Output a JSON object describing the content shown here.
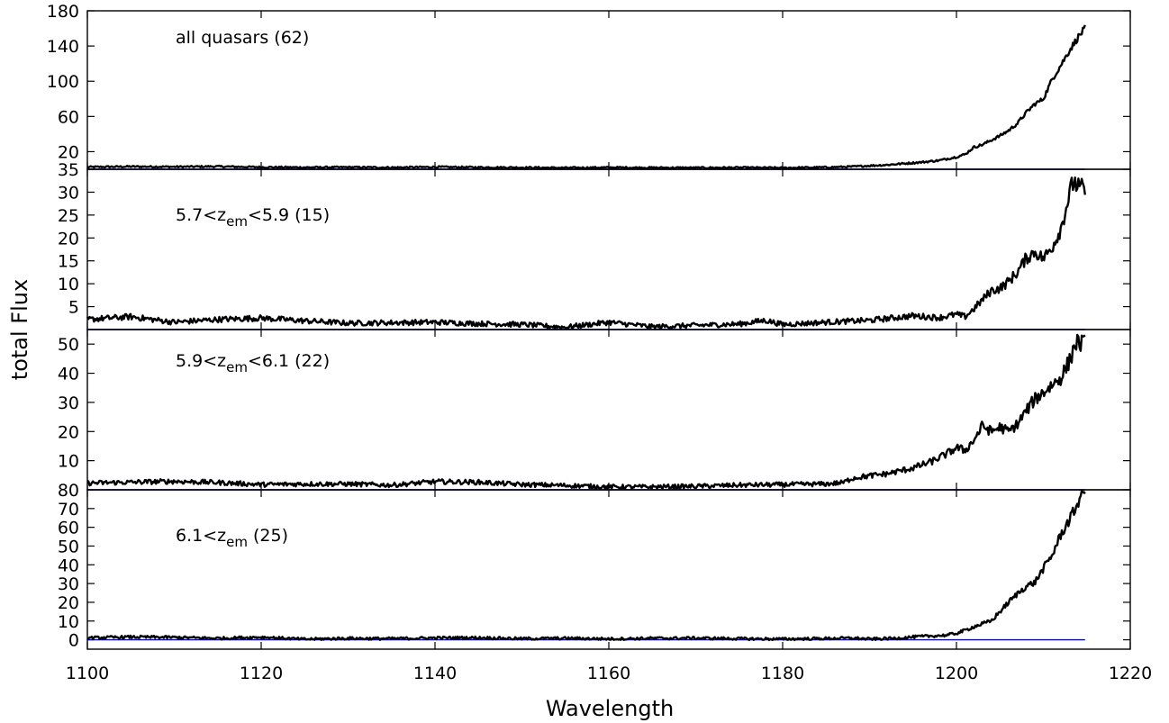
{
  "chart_data": {
    "type": "line",
    "xlabel": "Wavelength",
    "ylabel": "total Flux",
    "xlim": [
      1100,
      1220
    ],
    "x_ticks": [
      "1100",
      "1120",
      "1140",
      "1160",
      "1180",
      "1200",
      "1220"
    ],
    "colors": {
      "spectrum": "#000000",
      "baseline": "#0000ff",
      "frame": "#000000"
    },
    "panels": [
      {
        "label_parts": [
          {
            "text": "all quasars (62)",
            "sub": false
          }
        ],
        "ylim": [
          0,
          180
        ],
        "y_ticks": [
          20,
          60,
          100,
          140,
          180
        ],
        "baseline": 0,
        "noise": 0.9,
        "series": [
          {
            "values": [
              [
                1100,
                2.5
              ],
              [
                1105,
                3.1
              ],
              [
                1110,
                2.8
              ],
              [
                1115,
                3.2
              ],
              [
                1120,
                2.4
              ],
              [
                1125,
                2.1
              ],
              [
                1130,
                2.3
              ],
              [
                1135,
                2.0
              ],
              [
                1140,
                2.6
              ],
              [
                1145,
                2.2
              ],
              [
                1150,
                2.0
              ],
              [
                1155,
                1.6
              ],
              [
                1160,
                2.0
              ],
              [
                1165,
                1.8
              ],
              [
                1170,
                1.7
              ],
              [
                1175,
                1.9
              ],
              [
                1180,
                1.6
              ],
              [
                1185,
                2.2
              ],
              [
                1188,
                3.0
              ],
              [
                1190,
                4.0
              ],
              [
                1192,
                5.0
              ],
              [
                1194,
                6.5
              ],
              [
                1196,
                8.0
              ],
              [
                1198,
                10
              ],
              [
                1200,
                14
              ],
              [
                1201,
                17
              ],
              [
                1202,
                25
              ],
              [
                1203,
                28
              ],
              [
                1204,
                33
              ],
              [
                1205,
                38
              ],
              [
                1206,
                44
              ],
              [
                1207,
                52
              ],
              [
                1208,
                64
              ],
              [
                1209,
                74
              ],
              [
                1210,
                80
              ],
              [
                1211,
                102
              ],
              [
                1212,
                118
              ],
              [
                1213,
                135
              ],
              [
                1214,
                150
              ],
              [
                1214.8,
                160
              ]
            ]
          }
        ]
      },
      {
        "label_parts": [
          {
            "text": "5.7<z",
            "sub": false
          },
          {
            "text": "em",
            "sub": true
          },
          {
            "text": "<5.9 (15)",
            "sub": false
          }
        ],
        "ylim": [
          0,
          35
        ],
        "y_ticks": [
          5,
          10,
          15,
          20,
          25,
          30,
          35
        ],
        "baseline": 0,
        "noise": 0.5,
        "series": [
          {
            "values": [
              [
                1100,
                2.2
              ],
              [
                1105,
                2.8
              ],
              [
                1110,
                1.6
              ],
              [
                1115,
                2.2
              ],
              [
                1120,
                2.5
              ],
              [
                1125,
                1.9
              ],
              [
                1130,
                1.4
              ],
              [
                1135,
                1.5
              ],
              [
                1140,
                1.6
              ],
              [
                1145,
                1.3
              ],
              [
                1150,
                1.1
              ],
              [
                1155,
                0.5
              ],
              [
                1160,
                1.6
              ],
              [
                1165,
                0.6
              ],
              [
                1170,
                0.9
              ],
              [
                1175,
                1.2
              ],
              [
                1178,
                2.0
              ],
              [
                1180,
                1.1
              ],
              [
                1185,
                1.6
              ],
              [
                1190,
                2.0
              ],
              [
                1195,
                3.0
              ],
              [
                1198,
                2.6
              ],
              [
                1200,
                3.3
              ],
              [
                1201,
                2.8
              ],
              [
                1202,
                4.5
              ],
              [
                1203,
                6.5
              ],
              [
                1204,
                8.5
              ],
              [
                1205,
                9.0
              ],
              [
                1206,
                10.5
              ],
              [
                1207,
                12.5
              ],
              [
                1208,
                15.5
              ],
              [
                1209,
                17.0
              ],
              [
                1210,
                15.5
              ],
              [
                1211,
                18.0
              ],
              [
                1212,
                22.0
              ],
              [
                1213,
                29.5
              ],
              [
                1213.5,
                32.5
              ],
              [
                1214,
                31.0
              ],
              [
                1214.8,
                30.5
              ]
            ]
          }
        ]
      },
      {
        "label_parts": [
          {
            "text": "5.9<z",
            "sub": false
          },
          {
            "text": "em",
            "sub": true
          },
          {
            "text": "<6.1 (22)",
            "sub": false
          }
        ],
        "ylim": [
          0,
          55
        ],
        "y_ticks": [
          10,
          20,
          30,
          40,
          50
        ],
        "baseline": 0,
        "noise": 0.7,
        "series": [
          {
            "values": [
              [
                1100,
                2.3
              ],
              [
                1105,
                2.6
              ],
              [
                1110,
                2.9
              ],
              [
                1115,
                2.5
              ],
              [
                1120,
                1.8
              ],
              [
                1125,
                2.0
              ],
              [
                1130,
                2.0
              ],
              [
                1135,
                1.6
              ],
              [
                1140,
                2.8
              ],
              [
                1145,
                2.6
              ],
              [
                1150,
                1.8
              ],
              [
                1155,
                1.5
              ],
              [
                1160,
                1.0
              ],
              [
                1165,
                1.0
              ],
              [
                1170,
                1.2
              ],
              [
                1175,
                1.6
              ],
              [
                1180,
                1.8
              ],
              [
                1185,
                2.0
              ],
              [
                1187,
                2.5
              ],
              [
                1188,
                4.0
              ],
              [
                1190,
                4.8
              ],
              [
                1192,
                5.5
              ],
              [
                1195,
                7.5
              ],
              [
                1197,
                9.5
              ],
              [
                1199,
                12.5
              ],
              [
                1200,
                14.5
              ],
              [
                1201,
                13.5
              ],
              [
                1202,
                17.0
              ],
              [
                1203,
                22.0
              ],
              [
                1204,
                20.0
              ],
              [
                1205,
                21.5
              ],
              [
                1206,
                20.0
              ],
              [
                1207,
                22.5
              ],
              [
                1208,
                27.0
              ],
              [
                1209,
                31.0
              ],
              [
                1210,
                33.5
              ],
              [
                1211,
                36.0
              ],
              [
                1212,
                38.5
              ],
              [
                1213,
                44.0
              ],
              [
                1213.7,
                50.5
              ],
              [
                1214.8,
                50.0
              ]
            ]
          }
        ]
      },
      {
        "label_parts": [
          {
            "text": "6.1<z",
            "sub": false
          },
          {
            "text": "em",
            "sub": true
          },
          {
            "text": " (25)",
            "sub": false
          }
        ],
        "ylim": [
          -5,
          80
        ],
        "y_ticks": [
          0,
          10,
          20,
          30,
          40,
          50,
          60,
          70,
          80
        ],
        "baseline": 0,
        "noise": 0.7,
        "series": [
          {
            "values": [
              [
                1100,
                1.0
              ],
              [
                1105,
                1.5
              ],
              [
                1110,
                1.3
              ],
              [
                1115,
                0.8
              ],
              [
                1120,
                1.4
              ],
              [
                1125,
                0.3
              ],
              [
                1130,
                0.8
              ],
              [
                1135,
                0.6
              ],
              [
                1140,
                1.0
              ],
              [
                1145,
                1.1
              ],
              [
                1150,
                0.6
              ],
              [
                1155,
                0.8
              ],
              [
                1160,
                0.5
              ],
              [
                1165,
                0.8
              ],
              [
                1170,
                0.9
              ],
              [
                1175,
                0.6
              ],
              [
                1180,
                0.4
              ],
              [
                1185,
                0.7
              ],
              [
                1188,
                0.9
              ],
              [
                1190,
                0.4
              ],
              [
                1193,
                0.8
              ],
              [
                1195,
                1.5
              ],
              [
                1197,
                2.0
              ],
              [
                1199,
                2.5
              ],
              [
                1200,
                3.5
              ],
              [
                1201,
                5.0
              ],
              [
                1202,
                7.0
              ],
              [
                1203,
                8.5
              ],
              [
                1204,
                10.0
              ],
              [
                1205,
                15.0
              ],
              [
                1206,
                20.0
              ],
              [
                1207,
                24.5
              ],
              [
                1208,
                28.5
              ],
              [
                1209,
                30.5
              ],
              [
                1210,
                38.0
              ],
              [
                1211,
                45.0
              ],
              [
                1212,
                56.0
              ],
              [
                1213,
                64.0
              ],
              [
                1213.7,
                70.0
              ],
              [
                1214.3,
                77.0
              ],
              [
                1214.8,
                80.0
              ]
            ]
          }
        ]
      }
    ]
  }
}
